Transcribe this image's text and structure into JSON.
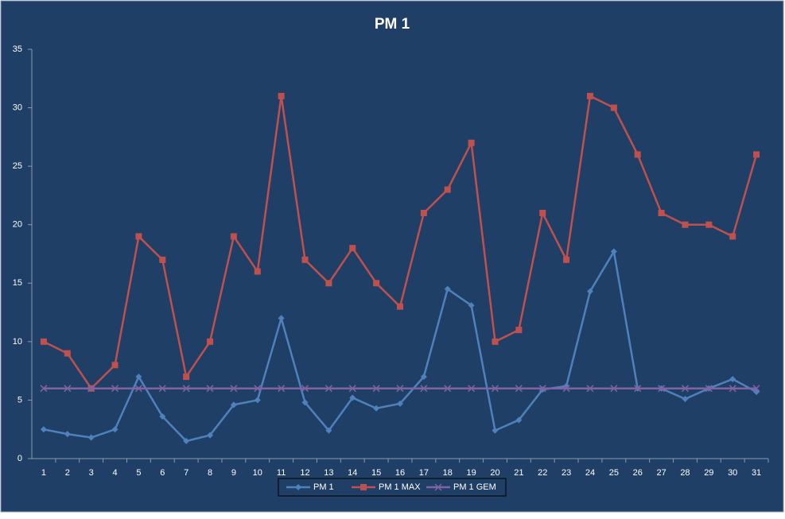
{
  "chart_data": {
    "type": "line",
    "title": "PM 1",
    "categories": [
      "1",
      "2",
      "3",
      "4",
      "5",
      "6",
      "7",
      "8",
      "9",
      "10",
      "11",
      "12",
      "13",
      "14",
      "15",
      "16",
      "17",
      "18",
      "19",
      "20",
      "21",
      "22",
      "23",
      "24",
      "25",
      "26",
      "27",
      "28",
      "29",
      "30",
      "31"
    ],
    "series": [
      {
        "name": "PM 1",
        "color": "#4f81bd",
        "marker": "diamond",
        "values": [
          2.5,
          2.1,
          1.8,
          2.5,
          7.0,
          3.6,
          1.5,
          2.0,
          4.6,
          5.0,
          12.0,
          4.8,
          2.4,
          5.2,
          4.3,
          4.7,
          7.0,
          14.5,
          13.1,
          2.4,
          3.3,
          5.9,
          6.2,
          14.3,
          17.7,
          6.0,
          6.0,
          5.1,
          6.0,
          6.8,
          5.7
        ]
      },
      {
        "name": "PM 1 MAX",
        "color": "#c0504d",
        "marker": "square",
        "values": [
          10,
          9,
          6,
          8,
          19,
          17,
          7,
          10,
          19,
          16,
          31,
          17,
          15,
          18,
          15,
          13,
          21,
          23,
          27,
          10,
          11,
          21,
          17,
          31,
          30,
          26,
          21,
          20,
          20,
          19,
          26
        ]
      },
      {
        "name": "PM 1 GEM",
        "color": "#8064a2",
        "marker": "x",
        "values": [
          6,
          6,
          6,
          6,
          6,
          6,
          6,
          6,
          6,
          6,
          6,
          6,
          6,
          6,
          6,
          6,
          6,
          6,
          6,
          6,
          6,
          6,
          6,
          6,
          6,
          6,
          6,
          6,
          6,
          6,
          6
        ]
      }
    ],
    "ylim": [
      0,
      35
    ],
    "yticks": [
      0,
      5,
      10,
      15,
      20,
      25,
      30,
      35
    ],
    "grid": false,
    "legend": "bottom"
  }
}
